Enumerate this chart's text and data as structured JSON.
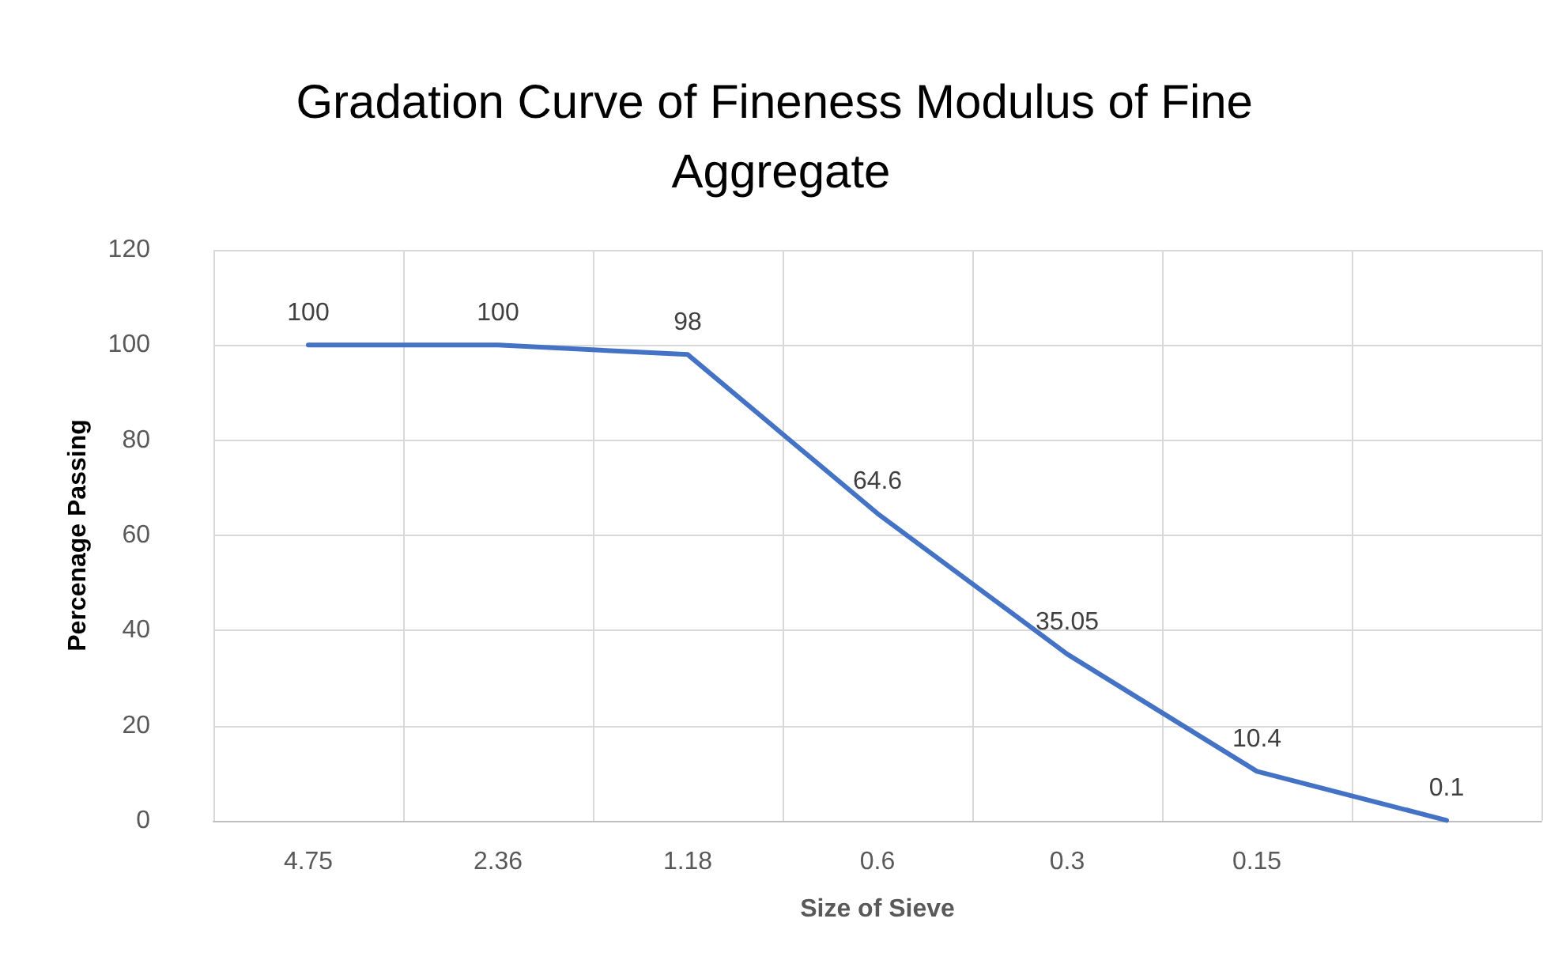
{
  "chart_data": {
    "type": "line",
    "title": "Gradation Curve of Fineness Modulus of Fine Aggregate",
    "xlabel": "Size of Sieve",
    "ylabel": "Percenage Passing",
    "categories": [
      "4.75",
      "2.36",
      "1.18",
      "0.6",
      "0.3",
      "0.15",
      null
    ],
    "series": [
      {
        "color": "#4472c4",
        "values": [
          100,
          100,
          98,
          64.6,
          35.05,
          10.4,
          0.1
        ]
      }
    ],
    "ylim": [
      0,
      120
    ],
    "yticks": [
      0,
      20,
      40,
      60,
      80,
      100,
      120
    ],
    "grid": true,
    "data_labels": true,
    "marker": "none",
    "line_style": "solid"
  }
}
